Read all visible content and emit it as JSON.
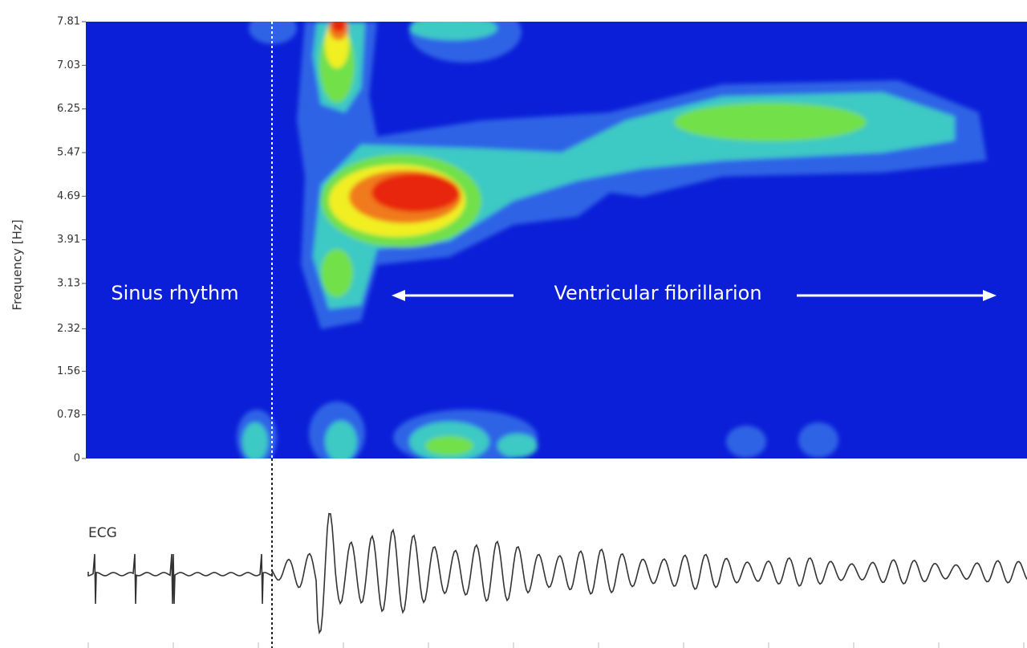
{
  "chart_data": {
    "type": "heatmap",
    "ylabel": "Frequency [Hz]",
    "ylim": [
      0,
      7.81
    ],
    "yticks": [
      0,
      0.78,
      1.56,
      2.32,
      3.13,
      3.91,
      4.69,
      5.47,
      6.25,
      7.03,
      7.81
    ],
    "annotations": [
      "Sinus rhythm",
      "Ventricular fibrillarion",
      "ECG"
    ]
  }
}
